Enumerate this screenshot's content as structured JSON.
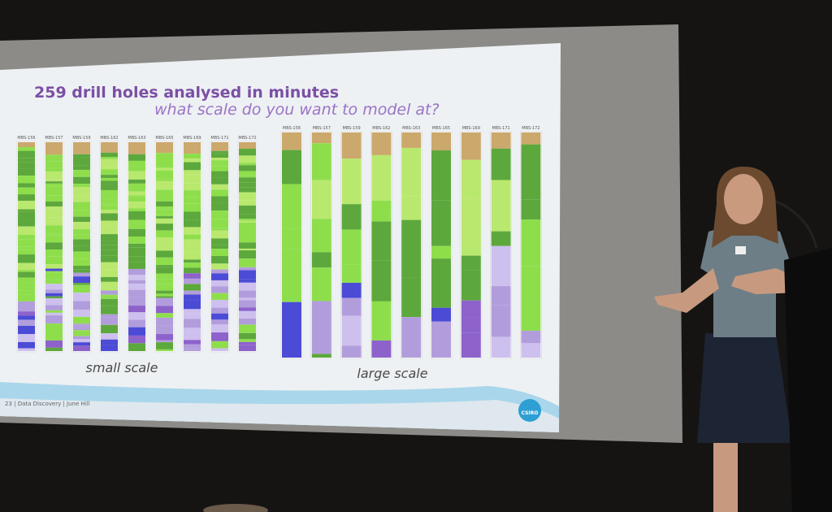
{
  "slide": {
    "title": "259 drill holes analysed in minutes",
    "subtitle": "what scale do you want to model at?",
    "panels": [
      {
        "label": "small scale",
        "holes": [
          "MBS-156",
          "MBS-157",
          "MBS-159",
          "MBS-162",
          "MBS-163",
          "MBS-165",
          "MBS-169",
          "MBS-171",
          "MBS-172"
        ]
      },
      {
        "label": "large scale",
        "holes": [
          "MBS-156",
          "MBS-157",
          "MBS-159",
          "MBS-162",
          "MBS-163",
          "MBS-165",
          "MBS-169",
          "MBS-171",
          "MBS-172"
        ]
      }
    ],
    "footer": "23 | Data Discovery | June Hill",
    "logo": "CSIRO"
  }
}
